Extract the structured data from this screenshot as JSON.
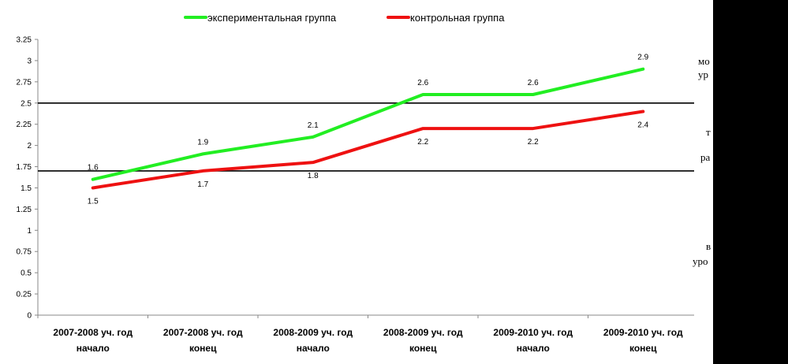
{
  "chart_data": {
    "type": "line",
    "categories": [
      [
        "2007-2008 уч. год",
        "начало"
      ],
      [
        "2007-2008 уч. год",
        "конец"
      ],
      [
        "2008-2009 уч. год",
        "начало"
      ],
      [
        "2008-2009 уч. год",
        "конец"
      ],
      [
        "2009-2010 уч. год",
        "начало"
      ],
      [
        "2009-2010 уч. год",
        "конец"
      ]
    ],
    "series": [
      {
        "name": "экспериментальная группа",
        "color": "#22ee22",
        "values": [
          1.6,
          1.9,
          2.1,
          2.6,
          2.6,
          2.9
        ]
      },
      {
        "name": "контрольная группа",
        "color": "#ee1111",
        "values": [
          1.5,
          1.7,
          1.8,
          2.2,
          2.2,
          2.4
        ]
      }
    ],
    "yticks": [
      "0",
      "0.25",
      "0.5",
      "0.75",
      "1",
      "1.25",
      "1.5",
      "1.75",
      "2",
      "2.25",
      "2.5",
      "2.75",
      "3",
      "3.25"
    ],
    "ylim": [
      0,
      3.25
    ],
    "reference_lines": [
      2.5,
      1.7
    ],
    "legend_position": "top",
    "grid": false
  },
  "side_labels": [
    "мо",
    "ур",
    "т",
    "ра",
    "в",
    "уро"
  ]
}
